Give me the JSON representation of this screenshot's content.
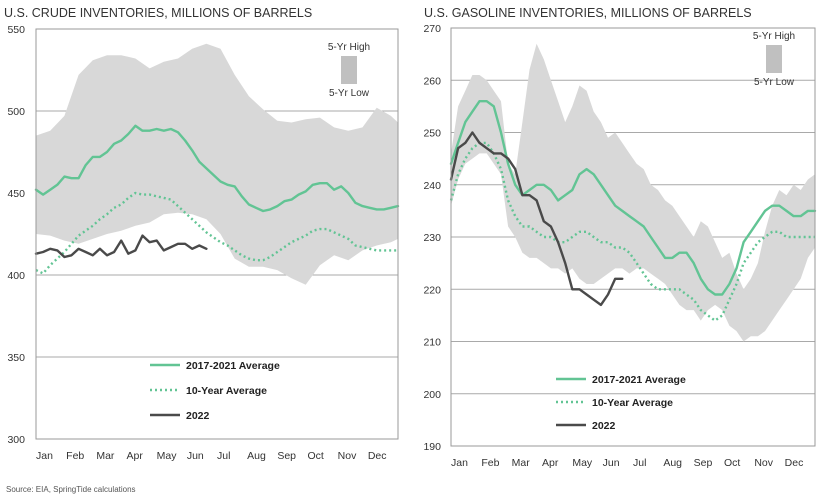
{
  "source_note": "Source: EIA, SpringTide calculations",
  "chart_data": [
    {
      "type": "line",
      "title": "U.S. CRUDE INVENTORIES, MILLIONS OF BARRELS",
      "xlabel": "",
      "ylabel": "",
      "x_ticks": [
        "Jan",
        "Feb",
        "Mar",
        "Apr",
        "May",
        "Jun",
        "Jul",
        "Aug",
        "Sep",
        "Oct",
        "Nov",
        "Dec"
      ],
      "y_ticks": [
        300,
        350,
        400,
        450,
        500,
        550
      ],
      "ylim": [
        300,
        550
      ],
      "xlim": [
        1,
        52
      ],
      "grid": "horizontal",
      "legend_position": "bottom-center",
      "band": {
        "legend_high": "5-Yr High",
        "legend_low": "5-Yr Low",
        "color": "#d8d8d8",
        "x": [
          1,
          3,
          5,
          7,
          9,
          11,
          13,
          15,
          17,
          19,
          21,
          23,
          25,
          27,
          29,
          31,
          33,
          35,
          37,
          39,
          41,
          43,
          45,
          47,
          49,
          51,
          52
        ],
        "high": [
          485,
          488,
          497,
          522,
          531,
          534,
          534,
          532,
          526,
          530,
          532,
          538,
          541,
          538,
          522,
          509,
          501,
          494,
          493,
          495,
          496,
          490,
          488,
          490,
          502,
          497,
          493
        ],
        "low": [
          425,
          424,
          421,
          419,
          422,
          425,
          427,
          430,
          432,
          437,
          438,
          437,
          434,
          425,
          410,
          405,
          405,
          403,
          398,
          394,
          406,
          412,
          409,
          415,
          418,
          420,
          422
        ]
      },
      "series": [
        {
          "name": "2017-2021 Average",
          "color": "#62c494",
          "style": "solid",
          "x": [
            1,
            2,
            3,
            4,
            5,
            6,
            7,
            8,
            9,
            10,
            11,
            12,
            13,
            14,
            15,
            16,
            17,
            18,
            19,
            20,
            21,
            22,
            23,
            24,
            25,
            26,
            27,
            28,
            29,
            30,
            31,
            32,
            33,
            34,
            35,
            36,
            37,
            38,
            39,
            40,
            41,
            42,
            43,
            44,
            45,
            46,
            47,
            48,
            49,
            50,
            51,
            52
          ],
          "values": [
            452,
            449,
            452,
            455,
            460,
            459,
            459,
            467,
            472,
            472,
            475,
            480,
            482,
            486,
            491,
            488,
            488,
            489,
            488,
            489,
            487,
            482,
            476,
            469,
            465,
            461,
            457,
            455,
            454,
            448,
            443,
            441,
            439,
            440,
            442,
            445,
            446,
            449,
            451,
            455,
            456,
            456,
            452,
            454,
            450,
            444,
            442,
            441,
            440,
            440,
            441,
            442
          ]
        },
        {
          "name": "10-Year Average",
          "color": "#62c494",
          "style": "dotted",
          "x": [
            1,
            2,
            3,
            4,
            5,
            6,
            7,
            8,
            9,
            10,
            11,
            12,
            13,
            14,
            15,
            16,
            17,
            18,
            19,
            20,
            21,
            22,
            23,
            24,
            25,
            26,
            27,
            28,
            29,
            30,
            31,
            32,
            33,
            34,
            35,
            36,
            37,
            38,
            39,
            40,
            41,
            42,
            43,
            44,
            45,
            46,
            47,
            48,
            49,
            50,
            51,
            52
          ],
          "values": [
            403,
            401,
            406,
            410,
            414,
            419,
            424,
            427,
            430,
            434,
            437,
            441,
            443,
            447,
            450,
            449,
            449,
            448,
            447,
            446,
            442,
            438,
            434,
            430,
            426,
            423,
            420,
            418,
            415,
            412,
            410,
            409,
            409,
            411,
            414,
            417,
            420,
            422,
            424,
            427,
            428,
            428,
            426,
            424,
            422,
            418,
            417,
            416,
            415,
            415,
            415,
            415
          ]
        },
        {
          "name": "2022",
          "color": "#4a4a4a",
          "style": "solid",
          "x": [
            1,
            2,
            3,
            4,
            5,
            6,
            7,
            8,
            9,
            10,
            11,
            12,
            13,
            14,
            15,
            16,
            17,
            18,
            19,
            20,
            21,
            22,
            23,
            24,
            25
          ],
          "values": [
            413,
            414,
            416,
            415,
            411,
            412,
            416,
            414,
            412,
            416,
            412,
            414,
            421,
            413,
            415,
            424,
            420,
            421,
            415,
            417,
            419,
            419,
            416,
            418,
            416
          ]
        }
      ]
    },
    {
      "type": "line",
      "title": "U.S. GASOLINE INVENTORIES, MILLIONS OF BARRELS",
      "xlabel": "",
      "ylabel": "",
      "x_ticks": [
        "Jan",
        "Feb",
        "Mar",
        "Apr",
        "May",
        "Jun",
        "Jul",
        "Aug",
        "Sep",
        "Oct",
        "Nov",
        "Dec"
      ],
      "y_ticks": [
        190,
        200,
        210,
        220,
        230,
        240,
        250,
        260,
        270
      ],
      "ylim": [
        190,
        270
      ],
      "xlim": [
        1,
        52
      ],
      "grid": "horizontal",
      "legend_position": "bottom-center",
      "band": {
        "legend_high": "5-Yr High",
        "legend_low": "5-Yr Low",
        "color": "#d8d8d8",
        "x": [
          1,
          2,
          3,
          4,
          5,
          6,
          7,
          8,
          9,
          10,
          11,
          12,
          13,
          14,
          15,
          16,
          17,
          18,
          19,
          20,
          21,
          22,
          23,
          24,
          25,
          26,
          27,
          28,
          29,
          30,
          31,
          32,
          33,
          34,
          35,
          36,
          37,
          38,
          39,
          40,
          41,
          42,
          43,
          44,
          45,
          46,
          47,
          48,
          49,
          50,
          51,
          52
        ],
        "high": [
          246,
          255,
          258,
          261,
          261,
          260,
          258,
          256,
          244,
          242,
          252,
          262,
          267,
          264,
          260,
          256,
          252,
          255,
          259,
          258,
          254,
          252,
          249,
          250,
          248,
          246,
          244,
          243,
          240,
          239,
          237,
          236,
          234,
          232,
          230,
          233,
          232,
          229,
          226,
          227,
          223,
          220,
          222,
          225,
          231,
          236,
          239,
          238,
          240,
          239,
          241,
          242
        ],
        "low": [
          236,
          241,
          244,
          245,
          246,
          246,
          244,
          242,
          232,
          230,
          227,
          226,
          226,
          225,
          224,
          224,
          223,
          224,
          222,
          221,
          221,
          222,
          223,
          224,
          224,
          223,
          224,
          224,
          223,
          222,
          221,
          219,
          217,
          216,
          216,
          214,
          216,
          217,
          216,
          213,
          212,
          210,
          211,
          211,
          212,
          214,
          216,
          218,
          220,
          222,
          226,
          228
        ]
      },
      "series": [
        {
          "name": "2017-2021 Average",
          "color": "#62c494",
          "style": "solid",
          "x": [
            1,
            2,
            3,
            4,
            5,
            6,
            7,
            8,
            9,
            10,
            11,
            12,
            13,
            14,
            15,
            16,
            17,
            18,
            19,
            20,
            21,
            22,
            23,
            24,
            25,
            26,
            27,
            28,
            29,
            30,
            31,
            32,
            33,
            34,
            35,
            36,
            37,
            38,
            39,
            40,
            41,
            42,
            43,
            44,
            45,
            46,
            47,
            48,
            49,
            50,
            51,
            52
          ],
          "values": [
            244,
            248,
            252,
            254,
            256,
            256,
            255,
            250,
            244,
            240,
            238,
            239,
            240,
            240,
            239,
            237,
            238,
            239,
            242,
            243,
            242,
            240,
            238,
            236,
            235,
            234,
            233,
            232,
            230,
            228,
            226,
            226,
            227,
            227,
            225,
            222,
            220,
            219,
            219,
            221,
            224,
            229,
            231,
            233,
            235,
            236,
            236,
            235,
            234,
            234,
            235,
            235
          ]
        },
        {
          "name": "10-Year Average",
          "color": "#62c494",
          "style": "dotted",
          "x": [
            1,
            2,
            3,
            4,
            5,
            6,
            7,
            8,
            9,
            10,
            11,
            12,
            13,
            14,
            15,
            16,
            17,
            18,
            19,
            20,
            21,
            22,
            23,
            24,
            25,
            26,
            27,
            28,
            29,
            30,
            31,
            32,
            33,
            34,
            35,
            36,
            37,
            38,
            39,
            40,
            41,
            42,
            43,
            44,
            45,
            46,
            47,
            48,
            49,
            50,
            51,
            52
          ],
          "values": [
            237,
            242,
            245,
            247,
            248,
            248,
            246,
            243,
            237,
            234,
            232,
            232,
            231,
            230,
            230,
            229,
            229,
            230,
            231,
            231,
            230,
            229,
            229,
            228,
            228,
            227,
            225,
            223,
            221,
            220,
            220,
            220,
            220,
            219,
            218,
            216,
            215,
            214,
            215,
            218,
            221,
            225,
            227,
            229,
            230,
            231,
            231,
            230,
            230,
            230,
            230,
            230
          ]
        },
        {
          "name": "2022",
          "color": "#4a4a4a",
          "style": "solid",
          "x": [
            1,
            2,
            3,
            4,
            5,
            6,
            7,
            8,
            9,
            10,
            11,
            12,
            13,
            14,
            15,
            16,
            17,
            18,
            19,
            20,
            21,
            22,
            23,
            24,
            25
          ],
          "values": [
            241,
            247,
            248,
            250,
            248,
            247,
            246,
            246,
            245,
            243,
            238,
            238,
            237,
            233,
            232,
            229,
            225,
            220,
            220,
            219,
            218,
            217,
            219,
            222,
            222
          ]
        }
      ]
    }
  ]
}
